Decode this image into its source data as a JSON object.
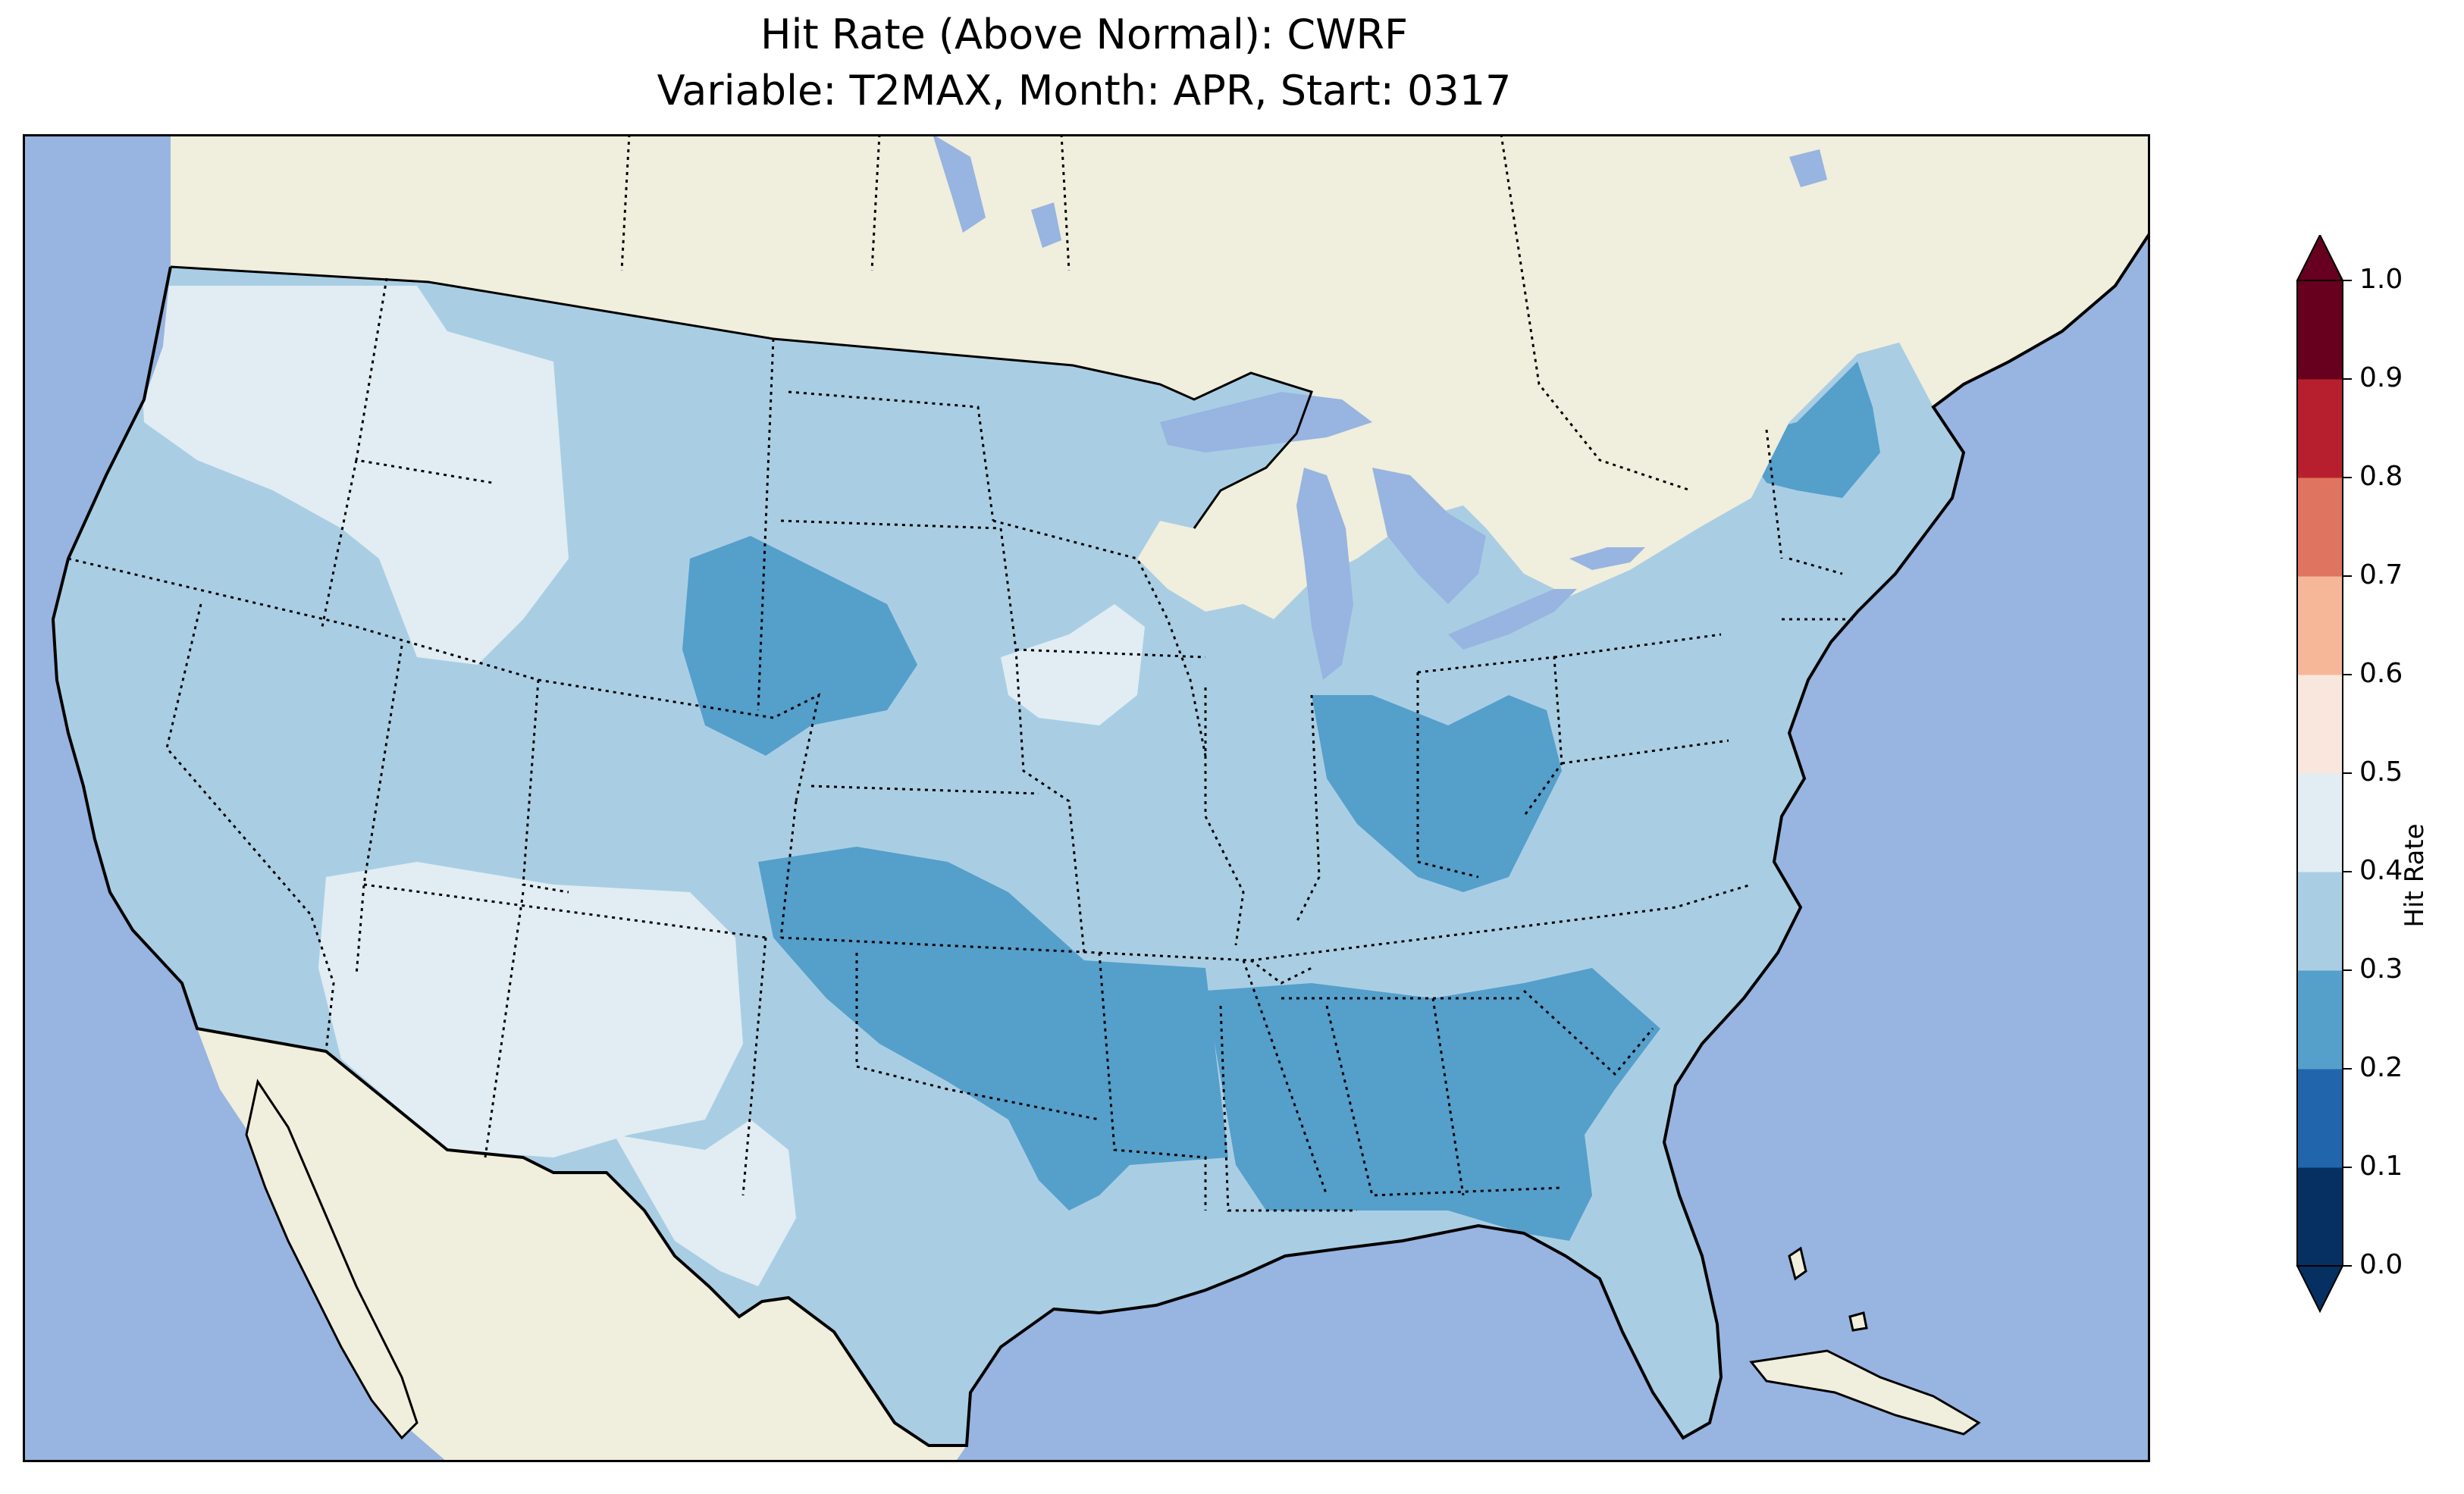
{
  "title": {
    "line1": "Hit Rate (Above Normal): CWRF",
    "line2": "Variable: T2MAX, Month: APR, Start: 0317"
  },
  "colors": {
    "ocean": "#98b4e0",
    "land": "#f0eedc",
    "lake": "#98b4e0"
  },
  "colorbar": {
    "label": "Hit Rate",
    "ticks": [
      "0.0",
      "0.1",
      "0.2",
      "0.3",
      "0.4",
      "0.5",
      "0.6",
      "0.7",
      "0.8",
      "0.9",
      "1.0"
    ],
    "levels": [
      {
        "min": 0.0,
        "max": 0.1,
        "color": "#053061"
      },
      {
        "min": 0.1,
        "max": 0.2,
        "color": "#2166ac"
      },
      {
        "min": 0.2,
        "max": 0.3,
        "color": "#559fcb"
      },
      {
        "min": 0.3,
        "max": 0.4,
        "color": "#a9cee4"
      },
      {
        "min": 0.4,
        "max": 0.5,
        "color": "#e1edf3"
      },
      {
        "min": 0.5,
        "max": 0.6,
        "color": "#f9e7dd"
      },
      {
        "min": 0.6,
        "max": 0.7,
        "color": "#f6b799"
      },
      {
        "min": 0.7,
        "max": 0.8,
        "color": "#df7460"
      },
      {
        "min": 0.8,
        "max": 0.9,
        "color": "#b81f2e"
      },
      {
        "min": 0.9,
        "max": 1.0,
        "color": "#67001f"
      }
    ],
    "extend": "both"
  },
  "map": {
    "region": "Contiguous United States",
    "base_value": 0.35,
    "regions": [
      {
        "name": "northwest",
        "value": 0.45
      },
      {
        "name": "four-corners",
        "value": 0.45
      },
      {
        "name": "west-texas",
        "value": 0.45
      },
      {
        "name": "eastern-iowa",
        "value": 0.45
      },
      {
        "name": "southern-great-plains",
        "value": 0.25
      },
      {
        "name": "wyoming-core",
        "value": 0.25
      },
      {
        "name": "southeast",
        "value": 0.25
      },
      {
        "name": "ohio-valley",
        "value": 0.25
      },
      {
        "name": "northern-maine",
        "value": 0.25
      },
      {
        "name": "florida-peninsula",
        "value": 0.35
      }
    ]
  }
}
